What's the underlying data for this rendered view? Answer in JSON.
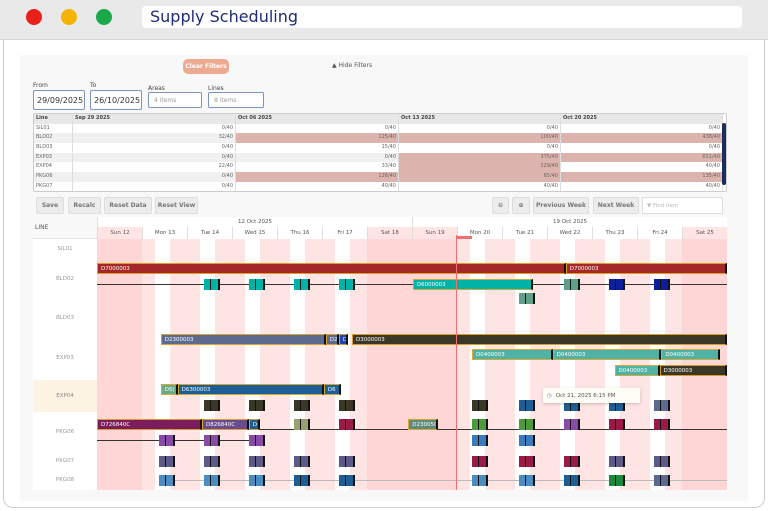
{
  "window": {
    "title": "Supply Scheduling",
    "lights": [
      "#e8201a",
      "#f4b400",
      "#1aa84a"
    ]
  },
  "filters": {
    "clear_label": "Clear Filters",
    "hide_label": "▲ Hide Filters",
    "from_label": "From",
    "from_value": "29/09/2025",
    "to_label": "To",
    "to_value": "26/10/2025",
    "areas_label": "Areas",
    "areas_placeholder": "4 items",
    "lines_label": "Lines",
    "lines_placeholder": "8 items"
  },
  "capacity": {
    "headers": [
      "Line",
      "Sep 29 2025",
      "Oct 06 2025",
      "Oct 13 2025",
      "Oct 20 2025"
    ],
    "rows": [
      {
        "line": "SIL01",
        "values": [
          "0/40",
          "0/40",
          "0/40",
          "0/40"
        ]
      },
      {
        "line": "BLD02",
        "values": [
          "32/40",
          "125/40",
          "100/40",
          "438/40"
        ]
      },
      {
        "line": "BLD03",
        "values": [
          "0/40",
          "15/40",
          "0/40",
          "0/40"
        ]
      },
      {
        "line": "EXP03",
        "values": [
          "0/40",
          "0/40",
          "375/40",
          "651/40"
        ]
      },
      {
        "line": "EXP04",
        "values": [
          "22/40",
          "33/40",
          "129/40",
          "40/40"
        ]
      },
      {
        "line": "PKG06",
        "values": [
          "0/40",
          "126/40",
          "65/40",
          "135/40"
        ]
      },
      {
        "line": "PKG07",
        "values": [
          "0/40",
          "40/40",
          "40/40",
          "40/40"
        ]
      }
    ]
  },
  "toolbar": {
    "save": "Save",
    "recalc": "Recalc",
    "reset_data": "Reset Data",
    "reset_view": "Reset View",
    "zoom_in_icon": "zoom-in-icon",
    "zoom_out_icon": "zoom-out-icon",
    "previous_week": "Previous Week",
    "next_week": "Next Week",
    "find_placeholder": "Find item"
  },
  "gantt": {
    "line_header": "LINE",
    "weeks": [
      "12 Oct 2025",
      "19 Oct 2025"
    ],
    "days": [
      "Sun 12",
      "Mon 13",
      "Tue 14",
      "Wed 15",
      "Thu 16",
      "Fri 17",
      "Sat 18",
      "Sun 19",
      "Mon 20",
      "Tue 21",
      "Wed 22",
      "Thu 23",
      "Fri 24",
      "Sat 25"
    ],
    "rows": [
      "SIL01",
      "BLD02",
      "BLD03",
      "EXP03",
      "EXP04",
      "PKG06",
      "PKG07",
      "PKG08"
    ],
    "bars": [
      {
        "row": "BLD02",
        "label": "D7000003",
        "start": "2025-10-12T00:00",
        "end": "2025-10-22T10:00",
        "color": "#a52828"
      },
      {
        "row": "BLD02",
        "label": "D7000003",
        "start": "2025-10-22T10:00",
        "end": "2025-10-26T00:00",
        "color": "#a52828"
      },
      {
        "row": "BLD02",
        "label": "D6000003",
        "start": "2025-10-19T00:30",
        "end": "2025-10-21T16:30",
        "color": "#00b3a7",
        "lane": 1
      },
      {
        "row": "EXP03",
        "label": "D2300003",
        "start": "2025-10-13T10:00",
        "end": "2025-10-17T02:00",
        "color": "#5d6a90"
      },
      {
        "row": "EXP03",
        "label": "D2",
        "start": "2025-10-17T02:00",
        "end": "2025-10-17T09:00",
        "color": "#5d6a90"
      },
      {
        "row": "EXP03",
        "label": "D",
        "start": "2025-10-17T09:00",
        "end": "2025-10-17T14:00",
        "color": "#2245b5"
      },
      {
        "row": "EXP03",
        "label": "D3000003",
        "start": "2025-10-17T16:00",
        "end": "2025-10-26T00:00",
        "color": "#3b3726"
      },
      {
        "row": "EXP03",
        "label": "D0400003",
        "start": "2025-10-20T08:00",
        "end": "2025-10-22T03:00",
        "color": "#4fb2a4",
        "lane": 1
      },
      {
        "row": "EXP03",
        "label": "D0400003",
        "start": "2025-10-22T03:00",
        "end": "2025-10-24T13:00",
        "color": "#4fb2a4",
        "lane": 1
      },
      {
        "row": "EXP03",
        "label": "D0400003",
        "start": "2025-10-24T13:00",
        "end": "2025-10-25T20:00",
        "color": "#4fb2a4",
        "lane": 1
      },
      {
        "row": "EXP03",
        "label": "D0400003",
        "start": "2025-10-23T12:00",
        "end": "2025-10-24T12:00",
        "color": "#4fb2a4",
        "lane": 2
      },
      {
        "row": "EXP03",
        "label": "D3000003",
        "start": "2025-10-24T12:00",
        "end": "2025-10-26T00:00",
        "color": "#3b3726",
        "lane": 2
      },
      {
        "row": "EXP04",
        "label": "D5(",
        "start": "2025-10-13T10:00",
        "end": "2025-10-13T19:00",
        "color": "#6aaa88"
      },
      {
        "row": "EXP04",
        "label": "D6300003",
        "start": "2025-10-13T19:00",
        "end": "2025-10-17T01:00",
        "color": "#1d5e94"
      },
      {
        "row": "EXP04",
        "label": "D6",
        "start": "2025-10-17T01:00",
        "end": "2025-10-17T10:00",
        "color": "#1d5e94"
      },
      {
        "row": "PKG06",
        "label": "D726840C",
        "start": "2025-10-12T00:00",
        "end": "2025-10-14T08:00",
        "color": "#7b1d5c"
      },
      {
        "row": "PKG06",
        "label": "D826840C",
        "start": "2025-10-14T08:00",
        "end": "2025-10-15T09:00",
        "color": "#6a4b8e"
      },
      {
        "row": "PKG06",
        "label": "D",
        "start": "2025-10-15T09:00",
        "end": "2025-10-15T15:00",
        "color": "#1d5e94"
      },
      {
        "row": "PKG06",
        "label": "D230050C",
        "start": "2025-10-18T22:00",
        "end": "2025-10-19T14:00",
        "color": "#5f8a7a"
      }
    ],
    "blocks": [
      {
        "row": "BLD02",
        "lane": 0.6,
        "color": "#00b3a7",
        "starts": [
          "2025-10-14T09:00",
          "2025-10-15T09:00",
          "2025-10-16T09:00",
          "2025-10-17T09:00"
        ]
      },
      {
        "row": "BLD02",
        "lane": 0.6,
        "color": "#5fa08a",
        "starts": [
          "2025-10-22T09:00"
        ]
      },
      {
        "row": "BLD02",
        "lane": 0.6,
        "color": "#0c1f9a",
        "starts": [
          "2025-10-23T09:00",
          "2025-10-24T09:00"
        ]
      },
      {
        "row": "BLD03",
        "lane": 0,
        "color": "#5fa08a",
        "starts": [
          "2025-10-21T09:00"
        ]
      },
      {
        "row": "EXP04",
        "lane": 1,
        "color": "#3b3726",
        "starts": [
          "2025-10-14T09:00",
          "2025-10-15T09:00",
          "2025-10-16T09:00",
          "2025-10-17T09:00",
          "2025-10-20T08:00"
        ]
      },
      {
        "row": "EXP04",
        "lane": 1,
        "color": "#1d5e94",
        "starts": [
          "2025-10-21T09:00",
          "2025-10-22T09:00",
          "2025-10-23T09:00"
        ]
      },
      {
        "row": "EXP04",
        "lane": 1,
        "color": "#5d6a90",
        "starts": [
          "2025-10-24T09:00"
        ]
      },
      {
        "row": "PKG06",
        "lane": 0,
        "color": "#9aa070",
        "starts": [
          "2025-10-16T09:00"
        ]
      },
      {
        "row": "PKG06",
        "lane": 0,
        "color": "#9b1b48",
        "starts": [
          "2025-10-17T09:00",
          "2025-10-23T09:00",
          "2025-10-24T09:00"
        ]
      },
      {
        "row": "PKG06",
        "lane": 0,
        "color": "#4d9a3a",
        "starts": [
          "2025-10-20T08:00",
          "2025-10-21T09:00"
        ]
      },
      {
        "row": "PKG06",
        "lane": 0,
        "color": "#8a4aa8",
        "starts": [
          "2025-10-22T09:00"
        ]
      },
      {
        "row": "PKG06",
        "lane": 1,
        "color": "#8a4aa8",
        "starts": [
          "2025-10-13T09:00",
          "2025-10-14T09:00",
          "2025-10-15T09:00"
        ]
      },
      {
        "row": "PKG06",
        "lane": 1,
        "color": "#3a7abf",
        "starts": [
          "2025-10-20T08:00",
          "2025-10-21T09:00"
        ]
      },
      {
        "row": "PKG07",
        "lane": 0,
        "color": "#5d5a88",
        "starts": [
          "2025-10-13T09:00",
          "2025-10-14T09:00",
          "2025-10-15T09:00",
          "2025-10-16T09:00",
          "2025-10-17T09:00",
          "2025-10-23T09:00",
          "2025-10-24T09:00"
        ]
      },
      {
        "row": "PKG07",
        "lane": 0,
        "color": "#9b1b48",
        "starts": [
          "2025-10-20T08:00",
          "2025-10-21T09:00",
          "2025-10-22T09:00"
        ]
      },
      {
        "row": "PKG08",
        "lane": 0,
        "color": "#4b8dc0",
        "starts": [
          "2025-10-13T09:00",
          "2025-10-14T09:00",
          "2025-10-15T09:00",
          "2025-10-20T08:00",
          "2025-10-21T09:00"
        ]
      },
      {
        "row": "PKG08",
        "lane": 0,
        "color": "#1d5e94",
        "starts": [
          "2025-10-16T09:00",
          "2025-10-17T09:00",
          "2025-10-22T09:00"
        ]
      },
      {
        "row": "PKG08",
        "lane": 0,
        "color": "#1a8a3a",
        "starts": [
          "2025-10-23T09:00"
        ]
      },
      {
        "row": "PKG08",
        "lane": 0,
        "color": "#5d6a90",
        "starts": [
          "2025-10-24T09:00"
        ]
      }
    ],
    "tooltip": "Oct 21, 2025 6:15 PM"
  }
}
